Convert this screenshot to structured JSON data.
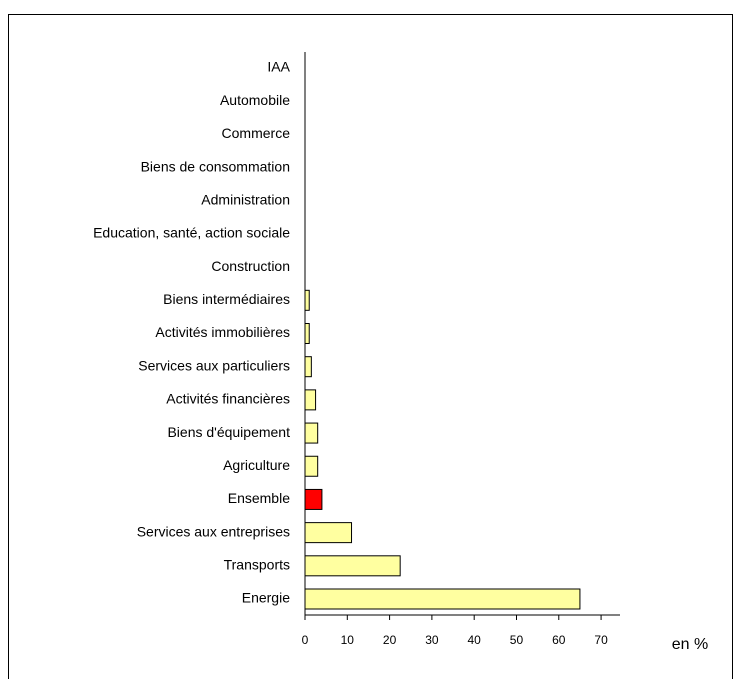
{
  "chart_data": {
    "type": "barh",
    "categories": [
      "IAA",
      "Automobile",
      "Commerce",
      "Biens de consommation",
      "Administration",
      "Education, santé, action sociale",
      "Construction",
      "Biens intermédiaires",
      "Activités immobilières",
      "Services aux particuliers",
      "Activités financières",
      "Biens d'équipement",
      "Agriculture",
      "Ensemble",
      "Services aux entreprises",
      "Transports",
      "Energie"
    ],
    "values": [
      0,
      0,
      0,
      0,
      0,
      0,
      0,
      1,
      1,
      1.5,
      2.5,
      3,
      3,
      4,
      11,
      22.5,
      65
    ],
    "colors": [
      "#ffffa0",
      "#ffffa0",
      "#ffffa0",
      "#ffffa0",
      "#ffffa0",
      "#ffffa0",
      "#ffffa0",
      "#ffffa0",
      "#ffffa0",
      "#ffffa0",
      "#ffffa0",
      "#ffffa0",
      "#ffffa0",
      "#ff0000",
      "#ffffa0",
      "#ffffa0",
      "#ffffa0"
    ],
    "xlim": [
      0,
      74
    ],
    "xticks": [
      0,
      10,
      20,
      30,
      40,
      50,
      60,
      70
    ],
    "xlabel": "en %"
  }
}
